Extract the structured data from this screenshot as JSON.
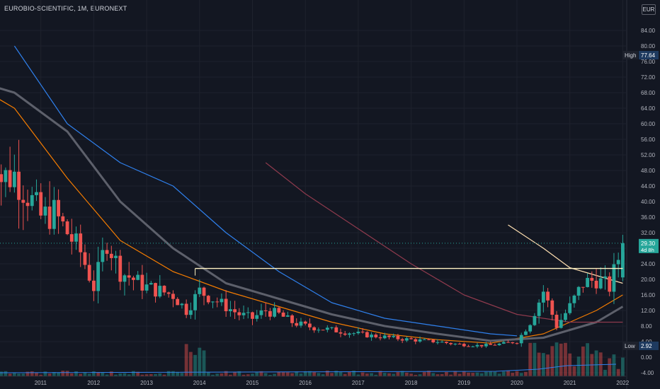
{
  "header": {
    "ticker": "EUROBIO-SCIENTIFIC, 1M, EURONEXT",
    "currency": "EUR"
  },
  "price_axis": {
    "ticks": [
      "84.00",
      "80.00",
      "76.00",
      "72.00",
      "68.00",
      "64.00",
      "60.00",
      "56.00",
      "52.00",
      "48.00",
      "44.00",
      "40.00",
      "36.00",
      "32.00",
      "28.00",
      "24.00",
      "20.00",
      "16.00",
      "12.00",
      "8.00",
      "4.00",
      "0.00",
      "-4.00"
    ]
  },
  "badges": {
    "high_label": "High",
    "high_value": "77.64",
    "low_label": "Low",
    "low_value": "2.92",
    "last_price": "29.30",
    "countdown": "4d 8h"
  },
  "colors": {
    "background": "#131722",
    "up": "#26a69a",
    "down": "#ef5350",
    "horizontal_line": "#fff3c4",
    "ma_blue": "#2f80ed",
    "ma_orange": "#f57c00",
    "ma_grey": "#5d606b",
    "ma_maroon": "#8e3a4d",
    "ma_cream": "#ffe0b2"
  },
  "chart_data": {
    "type": "candlestick",
    "title": "EUROBIO-SCIENTIFIC, 1M, EURONEXT",
    "interval": "1M",
    "ylim": [
      -6,
      88
    ],
    "x_range": [
      "2010-01",
      "2022-03"
    ],
    "x_ticks": [
      "2011",
      "2012",
      "2013",
      "2014",
      "2015",
      "2016",
      "2017",
      "2018",
      "2019",
      "2020",
      "2021",
      "2022"
    ],
    "grid": true,
    "high": 77.64,
    "low": 2.92,
    "last_price": 29.3,
    "horizontal_line": {
      "value": 22.8,
      "from": "2013-12",
      "to": "2022-01"
    },
    "price_closes": [
      [
        "2010-01",
        65
      ],
      [
        "2010-04",
        46
      ],
      [
        "2010-07",
        47
      ],
      [
        "2010-10",
        42
      ],
      [
        "2011-01",
        36
      ],
      [
        "2011-04",
        37
      ],
      [
        "2011-07",
        32
      ],
      [
        "2011-10",
        27
      ],
      [
        "2012-01",
        18
      ],
      [
        "2012-04",
        30
      ],
      [
        "2012-07",
        22
      ],
      [
        "2012-10",
        20
      ],
      [
        "2013-01",
        18
      ],
      [
        "2013-04",
        17
      ],
      [
        "2013-07",
        16
      ],
      [
        "2013-10",
        12
      ],
      [
        "2014-01",
        17
      ],
      [
        "2014-04",
        15
      ],
      [
        "2014-07",
        13
      ],
      [
        "2014-10",
        11
      ],
      [
        "2015-01",
        10
      ],
      [
        "2015-04",
        12
      ],
      [
        "2015-07",
        11
      ],
      [
        "2015-10",
        9
      ],
      [
        "2016-01",
        8
      ],
      [
        "2016-04",
        7.5
      ],
      [
        "2016-07",
        7
      ],
      [
        "2016-10",
        6.5
      ],
      [
        "2017-01",
        6
      ],
      [
        "2017-04",
        5.5
      ],
      [
        "2017-07",
        5.2
      ],
      [
        "2017-10",
        4.8
      ],
      [
        "2018-01",
        4.5
      ],
      [
        "2018-04",
        4.2
      ],
      [
        "2018-07",
        4
      ],
      [
        "2018-10",
        3.5
      ],
      [
        "2019-01",
        3.2
      ],
      [
        "2019-04",
        3
      ],
      [
        "2019-07",
        3.1
      ],
      [
        "2019-10",
        3.5
      ],
      [
        "2020-01",
        4
      ],
      [
        "2020-04",
        9
      ],
      [
        "2020-07",
        17
      ],
      [
        "2020-10",
        8
      ],
      [
        "2021-01",
        13
      ],
      [
        "2021-04",
        19
      ],
      [
        "2021-07",
        20
      ],
      [
        "2021-10",
        18
      ],
      [
        "2022-01",
        29.3
      ]
    ],
    "volume_spikes": [
      [
        "2013-12",
        1
      ],
      [
        "2020-06",
        1
      ],
      [
        "2020-11",
        1
      ],
      [
        "2021-06",
        1
      ]
    ],
    "moving_averages": [
      {
        "color": "#2f80ed",
        "points": [
          [
            "2010-07",
            80
          ],
          [
            "2011-07",
            60
          ],
          [
            "2012-07",
            50
          ],
          [
            "2013-07",
            44
          ],
          [
            "2014-07",
            32
          ],
          [
            "2015-07",
            22
          ],
          [
            "2016-07",
            14
          ],
          [
            "2017-07",
            10
          ],
          [
            "2018-07",
            8
          ],
          [
            "2019-07",
            6
          ],
          [
            "2020-01",
            5.5
          ]
        ]
      },
      {
        "color": "#f57c00",
        "points": [
          [
            "2010-01",
            68
          ],
          [
            "2010-07",
            64
          ],
          [
            "2011-07",
            46
          ],
          [
            "2012-07",
            30
          ],
          [
            "2013-07",
            22
          ],
          [
            "2014-07",
            17
          ],
          [
            "2015-07",
            13
          ],
          [
            "2016-07",
            9
          ],
          [
            "2017-07",
            6
          ],
          [
            "2018-07",
            4.5
          ],
          [
            "2019-07",
            3.6
          ],
          [
            "2020-07",
            6
          ],
          [
            "2021-07",
            12
          ],
          [
            "2022-01",
            16
          ]
        ]
      },
      {
        "color": "#5d606b",
        "points": [
          [
            "2010-01",
            70
          ],
          [
            "2010-07",
            68
          ],
          [
            "2011-07",
            58
          ],
          [
            "2012-07",
            40
          ],
          [
            "2013-07",
            28
          ],
          [
            "2014-07",
            19
          ],
          [
            "2015-07",
            15
          ],
          [
            "2016-07",
            11
          ],
          [
            "2017-07",
            8
          ],
          [
            "2018-07",
            6
          ],
          [
            "2019-07",
            4.2
          ],
          [
            "2020-07",
            5
          ],
          [
            "2021-07",
            9
          ],
          [
            "2022-01",
            13
          ]
        ]
      },
      {
        "color": "#8e3a4d",
        "points": [
          [
            "2015-04",
            50
          ],
          [
            "2016-01",
            42
          ],
          [
            "2017-01",
            33
          ],
          [
            "2018-01",
            24
          ],
          [
            "2019-01",
            16
          ],
          [
            "2020-01",
            11
          ],
          [
            "2021-01",
            9
          ],
          [
            "2022-01",
            9
          ]
        ]
      },
      {
        "color": "#ffe0b2",
        "points": [
          [
            "2019-11",
            34
          ],
          [
            "2020-07",
            28
          ],
          [
            "2021-01",
            23
          ],
          [
            "2021-07",
            21
          ],
          [
            "2022-01",
            19
          ]
        ]
      }
    ]
  }
}
